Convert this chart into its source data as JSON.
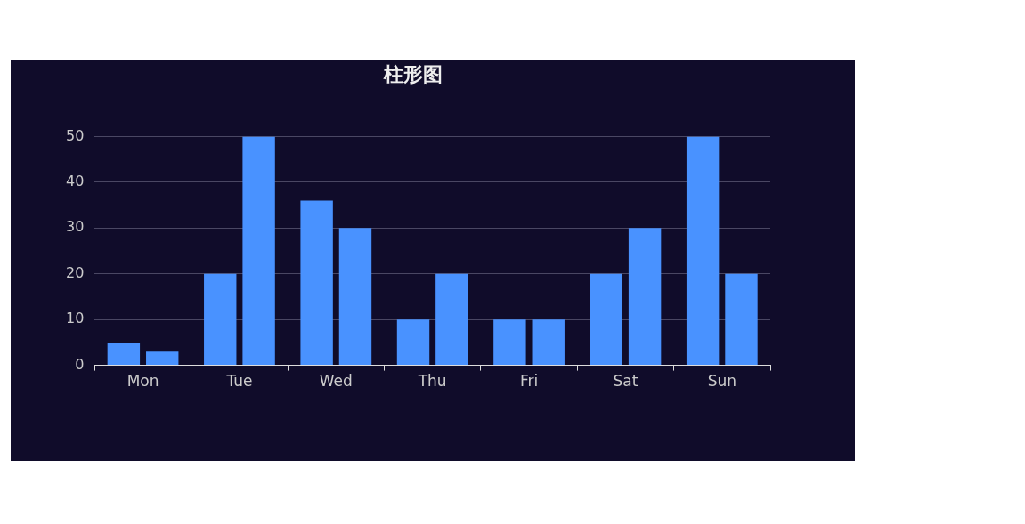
{
  "chart_data": {
    "type": "bar",
    "title": "柱形图",
    "categories": [
      "Mon",
      "Tue",
      "Wed",
      "Thu",
      "Fri",
      "Sat",
      "Sun"
    ],
    "series": [
      {
        "color": "#4992ff",
        "values": [
          5,
          20,
          36,
          10,
          10,
          20,
          50
        ]
      },
      {
        "color": "#4992ff",
        "values": [
          3,
          50,
          30,
          20,
          10,
          30,
          20
        ]
      }
    ],
    "ylim": [
      0,
      50
    ],
    "yticks": [
      0,
      10,
      20,
      30,
      40,
      50
    ],
    "grid": "y",
    "legend": false
  }
}
